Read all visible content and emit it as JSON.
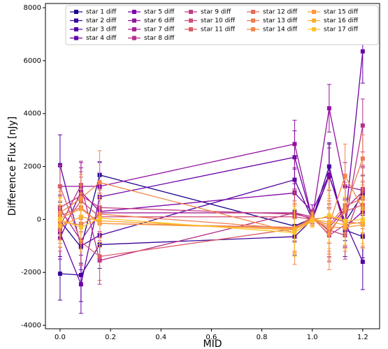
{
  "chart_data": {
    "type": "line",
    "x_label": "MID",
    "y_label": "Difference Flux [nJy]",
    "x": [
      0.0,
      0.083,
      0.157,
      0.93,
      1.0,
      1.067,
      1.13,
      1.2
    ],
    "xlim": [
      -0.058,
      1.267
    ],
    "ylim": [
      -4130,
      8160
    ],
    "xticks": [
      {
        "value": 0,
        "label": "0.0"
      },
      {
        "value": 0.2,
        "label": "0.2"
      },
      {
        "value": 0.4,
        "label": "0.4"
      },
      {
        "value": 0.6,
        "label": "0.6"
      },
      {
        "value": 0.8,
        "label": "0.8"
      },
      {
        "value": 1,
        "label": "1.0"
      },
      {
        "value": 1.2,
        "label": "1.2"
      }
    ],
    "yticks": [
      -4000,
      -2000,
      0,
      2000,
      4000,
      6000,
      8000
    ],
    "legend": "upper center",
    "series": [
      {
        "name": "star 1 diff",
        "color": "#1b068d",
        "values": [
          -50,
          -1050,
          1680,
          -250,
          50,
          1650,
          -100,
          950
        ],
        "errors": [
          700,
          600,
          500,
          600,
          200,
          1200,
          700,
          700
        ]
      },
      {
        "name": "star 2 diff",
        "color": "#3a049a",
        "values": [
          -2050,
          -2100,
          -950,
          -650,
          0,
          2000,
          -400,
          -650
        ],
        "errors": [
          1000,
          1000,
          900,
          700,
          200,
          900,
          1000,
          800
        ]
      },
      {
        "name": "star 3 diff",
        "color": "#5302a3",
        "values": [
          2050,
          -1000,
          -600,
          1500,
          0,
          1650,
          -100,
          -1600
        ],
        "errors": [
          1150,
          900,
          800,
          800,
          200,
          1200,
          900,
          1050
        ]
      },
      {
        "name": "star 4 diff",
        "color": "#6a00a8",
        "values": [
          -500,
          -2450,
          850,
          2350,
          0,
          1650,
          -150,
          6350
        ],
        "errors": [
          900,
          1100,
          900,
          1000,
          250,
          1200,
          900,
          1200
        ]
      },
      {
        "name": "star 5 diff",
        "color": "#8004a8",
        "values": [
          -700,
          1050,
          300,
          1000,
          300,
          1700,
          -300,
          300
        ],
        "errors": [
          800,
          900,
          900,
          900,
          250,
          1000,
          900,
          900
        ]
      },
      {
        "name": "star 6 diff",
        "color": "#9511a1",
        "values": [
          1250,
          1250,
          1250,
          2850,
          0,
          4200,
          1250,
          1100
        ],
        "errors": [
          800,
          900,
          900,
          900,
          250,
          900,
          900,
          900
        ]
      },
      {
        "name": "star 7 diff",
        "color": "#a72197",
        "values": [
          400,
          -800,
          250,
          250,
          0,
          -300,
          400,
          1050
        ],
        "errors": [
          800,
          900,
          900,
          900,
          250,
          1000,
          900,
          900
        ]
      },
      {
        "name": "star 8 diff",
        "color": "#b6308b",
        "values": [
          -250,
          1300,
          -1550,
          250,
          100,
          -600,
          -200,
          3550
        ],
        "errors": [
          800,
          900,
          900,
          900,
          250,
          1000,
          900,
          1000
        ]
      },
      {
        "name": "star 9 diff",
        "color": "#c33d80",
        "values": [
          450,
          900,
          450,
          200,
          50,
          -400,
          -600,
          1150
        ],
        "errors": [
          800,
          900,
          900,
          900,
          250,
          1000,
          900,
          900
        ]
      },
      {
        "name": "star 10 diff",
        "color": "#d04d73",
        "values": [
          -400,
          700,
          100,
          100,
          0,
          100,
          -100,
          -150
        ],
        "errors": [
          800,
          900,
          900,
          900,
          250,
          1000,
          900,
          900
        ]
      },
      {
        "name": "star 11 diff",
        "color": "#db5c68",
        "values": [
          1250,
          -850,
          -1400,
          -350,
          100,
          -450,
          300,
          550
        ],
        "errors": [
          800,
          900,
          900,
          900,
          250,
          1000,
          900,
          900
        ]
      },
      {
        "name": "star 12 diff",
        "color": "#e56b5d",
        "values": [
          150,
          450,
          -150,
          -300,
          0,
          -200,
          500,
          800
        ],
        "errors": [
          800,
          900,
          900,
          900,
          250,
          1000,
          900,
          900
        ]
      },
      {
        "name": "star 13 diff",
        "color": "#ee7b51",
        "values": [
          -100,
          -200,
          200,
          -350,
          50,
          -550,
          400,
          2300
        ],
        "errors": [
          800,
          900,
          900,
          900,
          250,
          1000,
          900,
          900
        ]
      },
      {
        "name": "star 14 diff",
        "color": "#f48849",
        "values": [
          250,
          800,
          1400,
          -500,
          0,
          -200,
          1650,
          400
        ],
        "errors": [
          800,
          900,
          1200,
          1200,
          250,
          1700,
          1200,
          900
        ]
      },
      {
        "name": "star 15 diff",
        "color": "#f99a3e",
        "values": [
          50,
          400,
          -150,
          -350,
          0,
          -300,
          -300,
          -200
        ],
        "errors": [
          800,
          900,
          900,
          900,
          250,
          1000,
          900,
          900
        ]
      },
      {
        "name": "star 16 diff",
        "color": "#fcac33",
        "values": [
          -250,
          100,
          -50,
          -400,
          0,
          -100,
          -200,
          -100
        ],
        "errors": [
          800,
          900,
          900,
          900,
          250,
          1000,
          900,
          900
        ]
      },
      {
        "name": "star 17 diff",
        "color": "#fdc328",
        "values": [
          0,
          -300,
          50,
          -500,
          -50,
          150,
          -50,
          0
        ],
        "errors": [
          800,
          900,
          900,
          900,
          250,
          1000,
          900,
          900
        ]
      }
    ]
  }
}
